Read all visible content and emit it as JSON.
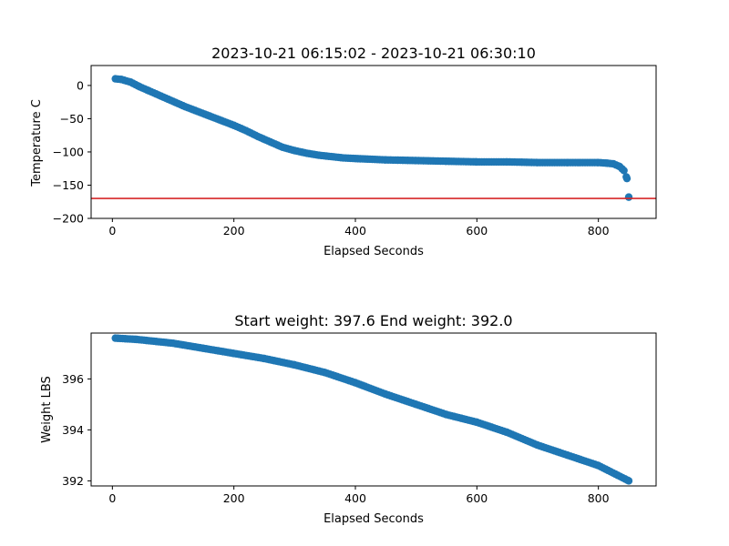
{
  "colors": {
    "point": "#1f77b4",
    "reference_line": "#d62728",
    "axes": "#000000",
    "background": "#ffffff"
  },
  "chart_data": [
    {
      "type": "scatter",
      "title": "2023-10-21 06:15:02 - 2023-10-21 06:30:10",
      "xlabel": "Elapsed Seconds",
      "ylabel": "Temperature C",
      "xlim": [
        -35,
        895
      ],
      "ylim": [
        -200,
        30
      ],
      "xticks": [
        0,
        200,
        400,
        600,
        800
      ],
      "yticks": [
        -200,
        -150,
        -100,
        -50,
        0
      ],
      "grid": false,
      "reference_line": {
        "y": -170
      },
      "x_range": [
        5,
        850
      ],
      "series": [
        {
          "values": [
            [
              5,
              10
            ],
            [
              15,
              9
            ],
            [
              30,
              5
            ],
            [
              45,
              -2
            ],
            [
              60,
              -8
            ],
            [
              80,
              -16
            ],
            [
              100,
              -24
            ],
            [
              120,
              -32
            ],
            [
              140,
              -39
            ],
            [
              160,
              -46
            ],
            [
              180,
              -53
            ],
            [
              200,
              -60
            ],
            [
              220,
              -68
            ],
            [
              240,
              -77
            ],
            [
              260,
              -85
            ],
            [
              280,
              -93
            ],
            [
              300,
              -98
            ],
            [
              320,
              -102
            ],
            [
              340,
              -105
            ],
            [
              360,
              -107
            ],
            [
              380,
              -109
            ],
            [
              400,
              -110
            ],
            [
              450,
              -112
            ],
            [
              500,
              -113
            ],
            [
              550,
              -114
            ],
            [
              600,
              -115
            ],
            [
              650,
              -115
            ],
            [
              700,
              -116
            ],
            [
              750,
              -116
            ],
            [
              800,
              -116
            ],
            [
              815,
              -117
            ],
            [
              825,
              -118
            ],
            [
              835,
              -122
            ],
            [
              842,
              -128
            ],
            [
              847,
              -140
            ],
            [
              850,
              -168
            ]
          ]
        }
      ]
    },
    {
      "type": "scatter",
      "title": "Start weight: 397.6 End weight: 392.0",
      "xlabel": "Elapsed Seconds",
      "ylabel": "Weight LBS",
      "xlim": [
        -35,
        895
      ],
      "ylim": [
        391.8,
        397.8
      ],
      "xticks": [
        0,
        200,
        400,
        600,
        800
      ],
      "yticks": [
        392,
        394,
        396
      ],
      "grid": false,
      "x_range": [
        5,
        850
      ],
      "series": [
        {
          "values": [
            [
              5,
              397.6
            ],
            [
              40,
              397.55
            ],
            [
              100,
              397.4
            ],
            [
              150,
              397.2
            ],
            [
              200,
              397.0
            ],
            [
              250,
              396.8
            ],
            [
              300,
              396.55
            ],
            [
              350,
              396.25
            ],
            [
              400,
              395.85
            ],
            [
              450,
              395.4
            ],
            [
              500,
              395.0
            ],
            [
              550,
              394.6
            ],
            [
              600,
              394.3
            ],
            [
              650,
              393.9
            ],
            [
              700,
              393.4
            ],
            [
              750,
              393.0
            ],
            [
              800,
              392.6
            ],
            [
              850,
              392.0
            ]
          ]
        }
      ]
    }
  ]
}
